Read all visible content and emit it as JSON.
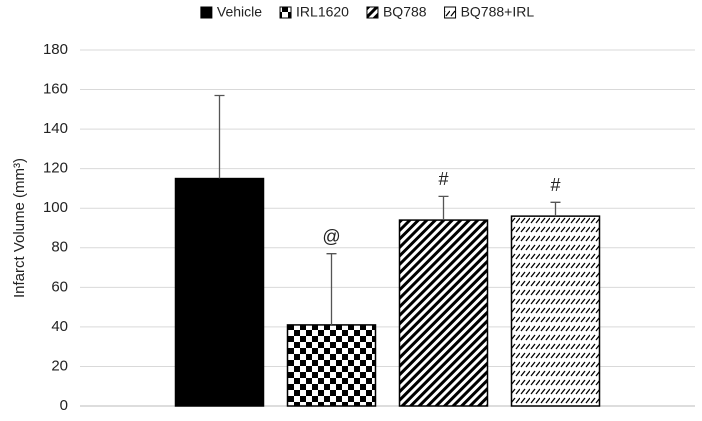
{
  "chart_data": {
    "type": "bar",
    "y_label": "Infarct Volume (mm³)",
    "categories": [
      null
    ],
    "series": [
      {
        "name": "Vehicle",
        "color": "#000000",
        "pattern": "solid",
        "values": [
          115
        ],
        "errors": [
          42
        ]
      },
      {
        "name": "IRL1620",
        "color": "#000000",
        "pattern": "checker",
        "values": [
          41
        ],
        "errors": [
          36
        ],
        "annotation": "@"
      },
      {
        "name": "BQ788",
        "color": "#000000",
        "pattern": "diagonal",
        "values": [
          94
        ],
        "errors": [
          12
        ],
        "annotation": "#"
      },
      {
        "name": "BQ788+IRL",
        "color": "#000000",
        "pattern": "dashed-diagonal",
        "values": [
          96
        ],
        "errors": [
          7
        ],
        "annotation": "#"
      }
    ],
    "ylim": [
      0,
      180
    ],
    "yticks": [
      0,
      20,
      40,
      60,
      80,
      100,
      120,
      140,
      160,
      180
    ],
    "grid": true,
    "legend": "top"
  }
}
